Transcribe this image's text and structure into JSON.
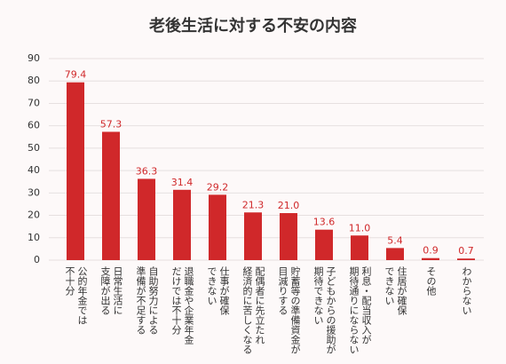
{
  "chart_data": {
    "type": "bar",
    "title": "老後生活に対する不安の内容",
    "categories": [
      "公的年金では\n不十分",
      "日常生活に\n支障が出る",
      "自助努力による\n準備が不足する",
      "退職金や企業年金\nだけでは不十分",
      "仕事が確保\nできない",
      "配偶者に先立たれ\n経済的に苦しくなる",
      "貯蓄等の準備資金が\n目減りする",
      "子どもからの援助が\n期待できない",
      "利息・配当収入が\n期待通りにならない",
      "住居が確保\nできない",
      "その他",
      "わからない"
    ],
    "values": [
      79.4,
      57.3,
      36.3,
      31.4,
      29.2,
      21.3,
      21.0,
      13.6,
      11.0,
      5.4,
      0.9,
      0.7
    ],
    "value_labels": [
      "79.4",
      "57.3",
      "36.3",
      "31.4",
      "29.2",
      "21.3",
      "21.0",
      "13.6",
      "11.0",
      "5.4",
      "0.9",
      "0.7"
    ],
    "color": "#d0282a",
    "ylim": [
      0,
      90
    ],
    "yticks": [
      0,
      10,
      20,
      30,
      40,
      50,
      60,
      70,
      80,
      90
    ],
    "grid": true
  }
}
